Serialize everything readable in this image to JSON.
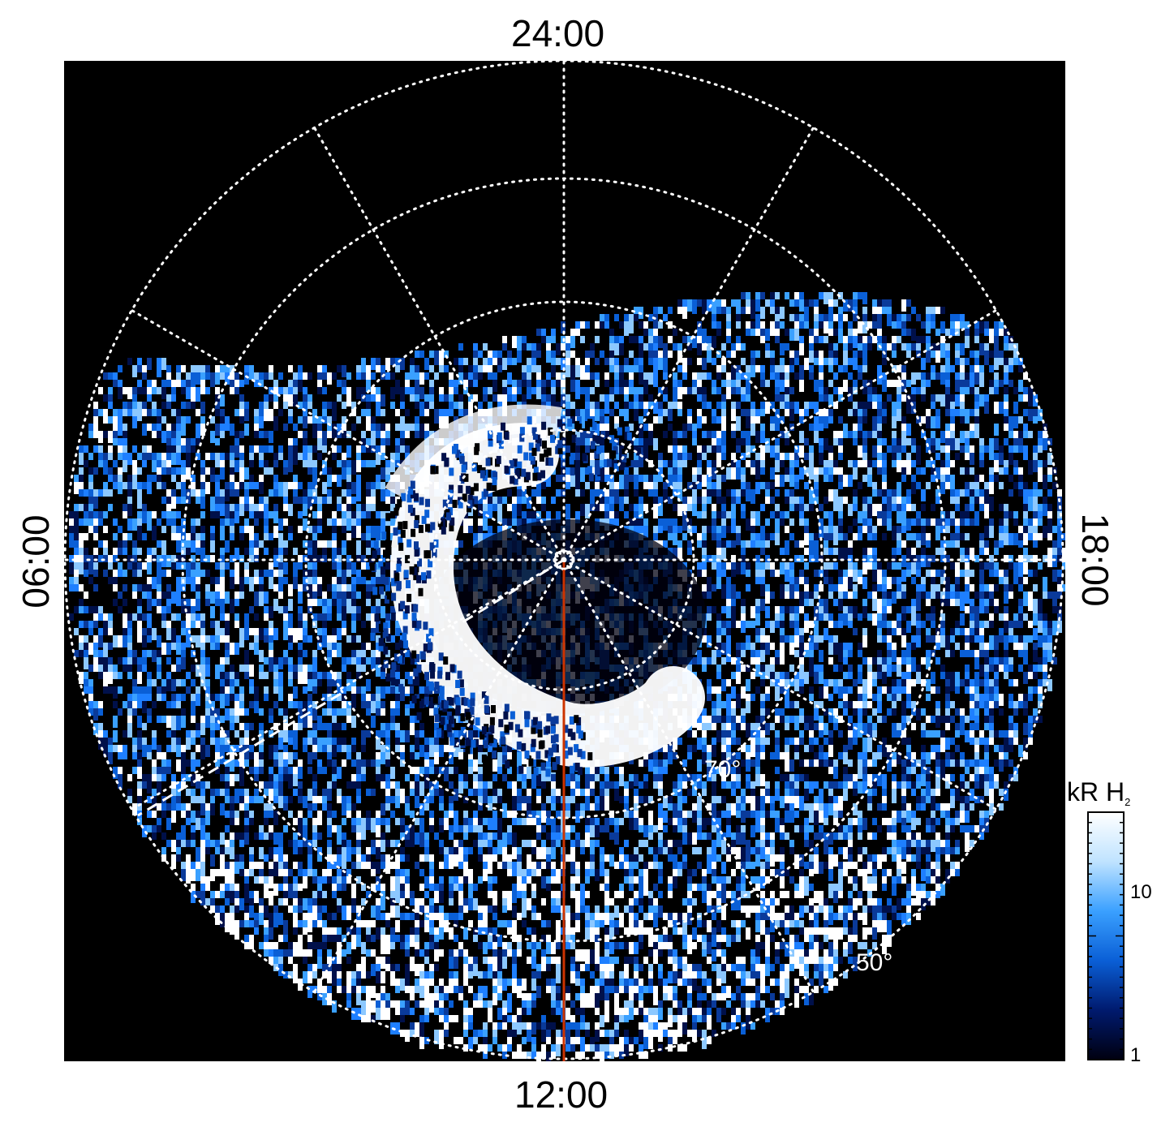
{
  "image": {
    "labels": {
      "top": "24:00",
      "bottom": "12:00",
      "left": "06:00",
      "right": "18:00"
    },
    "lat_labels": [
      "70°",
      "50°"
    ],
    "colorbar": {
      "title": "kR H",
      "title_subscript": "2",
      "ticks": [
        "10",
        "1"
      ],
      "colors": [
        "#000010",
        "#001a6e",
        "#0a5fd6",
        "#3aa0ff",
        "#bfe3ff",
        "#ffffff"
      ]
    },
    "colors": {
      "background": "#000000",
      "grid": "#ffffff",
      "meridian_line": "#cc3300",
      "emission_bright": "#ffffff"
    }
  }
}
